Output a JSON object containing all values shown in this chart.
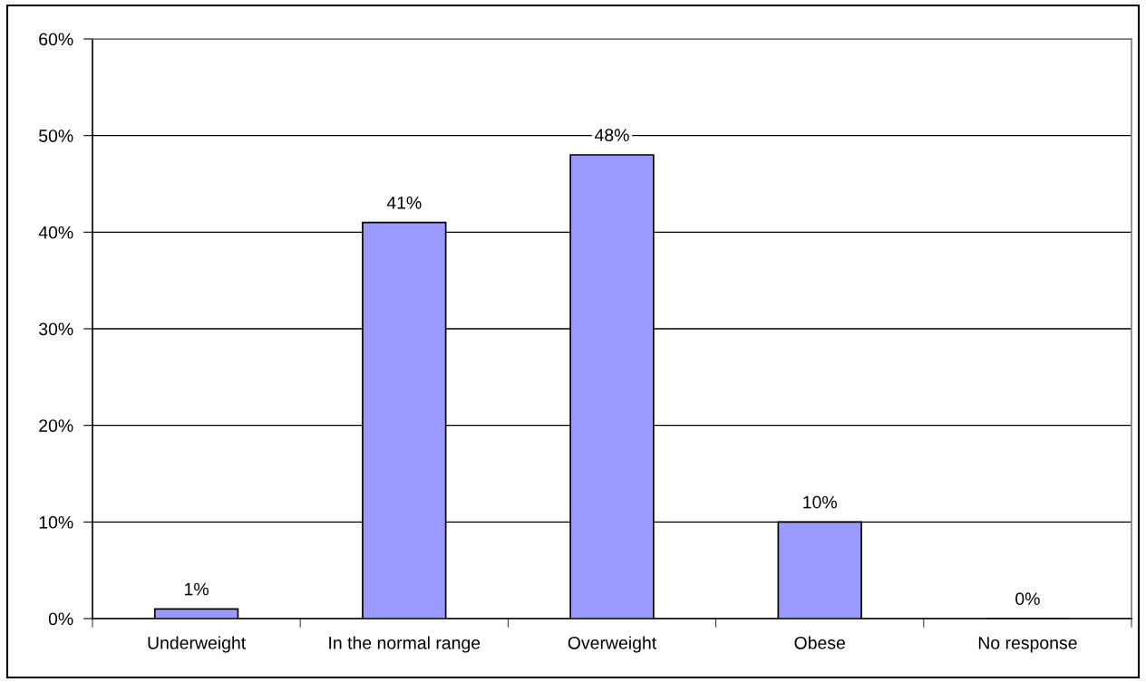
{
  "chart_data": {
    "type": "bar",
    "categories": [
      "Underweight",
      "In the normal range",
      "Overweight",
      "Obese",
      "No response"
    ],
    "values": [
      1,
      41,
      48,
      10,
      0
    ],
    "color": "#9999ff",
    "value_labels": [
      "1%",
      "41%",
      "48%",
      "10%",
      "0%"
    ],
    "ylim": [
      0,
      60
    ],
    "yticks": [
      {
        "value": 0,
        "label": "0%"
      },
      {
        "value": 10,
        "label": "10%"
      },
      {
        "value": 20,
        "label": "20%"
      },
      {
        "value": 30,
        "label": "30%"
      },
      {
        "value": 40,
        "label": "40%"
      },
      {
        "value": 50,
        "label": "50%"
      },
      {
        "value": 60,
        "label": "60%"
      }
    ],
    "grid": "y"
  }
}
